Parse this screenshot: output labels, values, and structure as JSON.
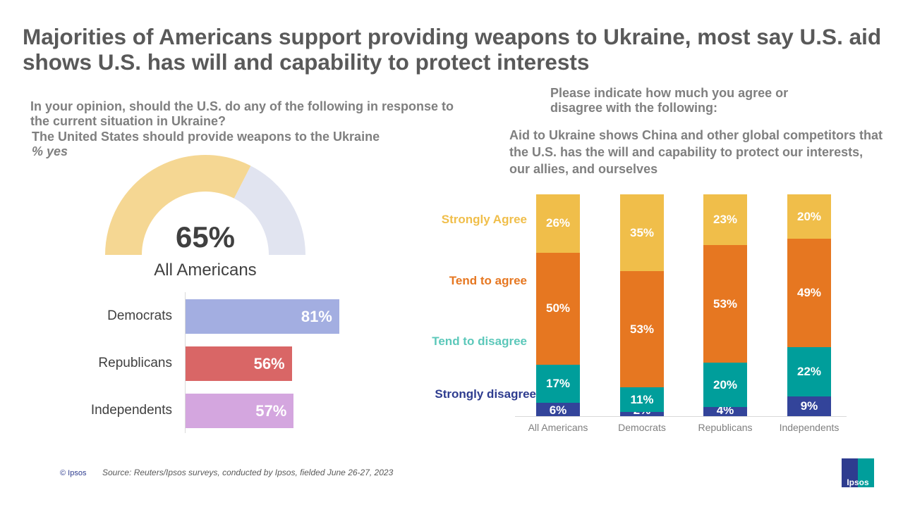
{
  "title": "Majorities of Americans support providing weapons to Ukraine, most say U.S. aid shows U.S. has will and capability to protect interests",
  "left": {
    "question": "In your opinion, should the U.S. do any of the following  in response to the current situation in Ukraine?",
    "statement": "The United States should provide weapons to the Ukraine",
    "measure": "% yes"
  },
  "right": {
    "question": "Please indicate how much you agree or disagree with the following:",
    "statement": "Aid to Ukraine shows China and other global competitors that the U.S. has the will  and capability to protect our interests, our allies, and ourselves"
  },
  "chart_data": [
    {
      "type": "gauge",
      "value": 65,
      "label": "65%",
      "category": "All Americans",
      "max": 100,
      "colors": {
        "fill": "#F5D793",
        "rest": "#E1E4F0"
      }
    },
    {
      "type": "bar",
      "orientation": "horizontal",
      "categories": [
        "Democrats",
        "Republicans",
        "Independents"
      ],
      "values": [
        81,
        56,
        57
      ],
      "labels": [
        "81%",
        "56%",
        "57%"
      ],
      "colors": [
        "#A3AEE1",
        "#D96666",
        "#D4A6DF"
      ],
      "xlim": [
        0,
        100
      ]
    },
    {
      "type": "bar",
      "stacked": true,
      "categories": [
        "All Americans",
        "Democrats",
        "Republicans",
        "Independents"
      ],
      "series": [
        {
          "name": "Strongly disagree",
          "color": "#33449A",
          "values": [
            6,
            2,
            4,
            9
          ]
        },
        {
          "name": "Tend to disagree",
          "color": "#009E9B",
          "values": [
            17,
            11,
            20,
            22
          ]
        },
        {
          "name": "Tend to agree",
          "color": "#E67721",
          "values": [
            50,
            53,
            53,
            49
          ]
        },
        {
          "name": "Strongly Agree",
          "color": "#F0BE4A",
          "values": [
            26,
            35,
            23,
            20
          ]
        }
      ],
      "legend_colors": {
        "Strongly disagree": "#2E3C8F",
        "Tend to disagree": "#5CC8BA",
        "Tend to agree": "#E67721",
        "Strongly Agree": "#F0BE4A"
      }
    }
  ],
  "footer": {
    "copyright": "© Ipsos",
    "source": "Source: Reuters/Ipsos surveys, conducted by Ipsos, fielded June 26-27, 2023",
    "logo": "Ipsos"
  }
}
